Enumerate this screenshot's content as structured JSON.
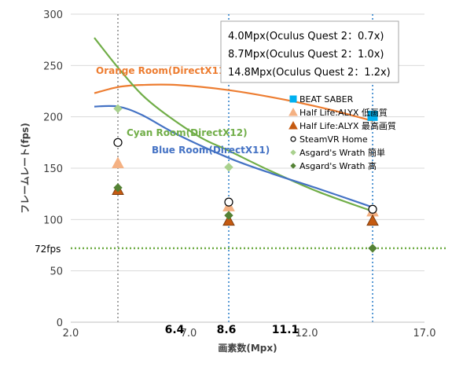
{
  "chart_data": {
    "type": "scatter",
    "xlabel": "画素数(Mpx)",
    "ylabel": "フレームレート(fps)",
    "xlim": [
      2.0,
      17.0
    ],
    "ylim": [
      0,
      300
    ],
    "x_ticks": [
      2.0,
      7.0,
      12.0,
      17.0
    ],
    "x_tick_labels": [
      "2.0",
      "7.0",
      "12.0",
      "17.0"
    ],
    "y_ticks": [
      0,
      50,
      100,
      150,
      200,
      250,
      300
    ],
    "y_tick_labels": [
      "0",
      "50",
      "100",
      "150",
      "200",
      "250",
      "300"
    ],
    "extra_x_labels": [
      {
        "x": 6.4,
        "label": "6.4"
      },
      {
        "x": 8.6,
        "label": "8.6"
      },
      {
        "x": 11.1,
        "label": "11.1"
      }
    ],
    "reference_line": {
      "y": 72,
      "label": "72fps",
      "color": "#70ad47"
    },
    "vertical_lines": [
      {
        "x": 4.0,
        "color": "#a6a6a6"
      },
      {
        "x": 8.7,
        "color": "#5b9bd5"
      },
      {
        "x": 14.8,
        "color": "#5b9bd5"
      }
    ],
    "info_box": [
      "4.0Mpx(Oculus Quest 2：0.7x)",
      "8.7Mpx(Oculus Quest 2：1.0x)",
      "14.8Mpx(Oculus Quest 2：1.2x)"
    ],
    "curves": [
      {
        "label": "Orange Room(DirectX11)",
        "color": "#ed7d31",
        "points": [
          [
            3.0,
            223
          ],
          [
            4.0,
            229
          ],
          [
            5.0,
            231
          ],
          [
            6.5,
            231
          ],
          [
            8.7,
            226
          ],
          [
            11.0,
            217
          ],
          [
            13.0,
            207
          ],
          [
            14.8,
            196
          ]
        ]
      },
      {
        "label": "Cyan Room(DirectX12)",
        "color": "#70ad47",
        "points": [
          [
            3.0,
            277
          ],
          [
            4.0,
            248
          ],
          [
            5.0,
            222
          ],
          [
            6.0,
            203
          ],
          [
            7.5,
            180
          ],
          [
            8.7,
            167
          ],
          [
            10.5,
            147
          ],
          [
            12.5,
            127
          ],
          [
            14.8,
            108
          ]
        ]
      },
      {
        "label": "Blue Room(DirectX11)",
        "color": "#4472c4",
        "points": [
          [
            3.0,
            210
          ],
          [
            4.0,
            210
          ],
          [
            5.0,
            202
          ],
          [
            6.5,
            183
          ],
          [
            8.7,
            160
          ],
          [
            10.5,
            145
          ],
          [
            12.5,
            130
          ],
          [
            14.8,
            112
          ]
        ]
      }
    ],
    "legend": [
      {
        "name": "BEAT SABER",
        "marker": "square",
        "color": "#00b0f0"
      },
      {
        "name": "Half Life:ALYX 低画質",
        "marker": "triangle",
        "color": "#f4b183"
      },
      {
        "name": "Half Life:ALYX 最高画質",
        "marker": "triangle",
        "color": "#c55a11"
      },
      {
        "name": "SteamVR Home",
        "marker": "circle",
        "color": "#000000"
      },
      {
        "name": "Asgard's Wrath 簡単",
        "marker": "diamond",
        "color": "#a9d18e"
      },
      {
        "name": "Asgard's Wrath 高",
        "marker": "diamond",
        "color": "#548235"
      }
    ],
    "series": [
      {
        "name": "BEAT SABER",
        "marker": "square",
        "fill": "#00b0f0",
        "stroke": "#00b0f0",
        "points": [
          [
            14.8,
            201
          ]
        ]
      },
      {
        "name": "Half Life:ALYX 低画質",
        "marker": "triangle",
        "fill": "#f4b183",
        "stroke": "#f4b183",
        "points": [
          [
            4.0,
            155
          ],
          [
            8.7,
            113
          ],
          [
            14.8,
            108
          ]
        ]
      },
      {
        "name": "Half Life:ALYX 最高画質",
        "marker": "triangle",
        "fill": "#c55a11",
        "stroke": "#7f3f0f",
        "points": [
          [
            4.0,
            129
          ],
          [
            8.7,
            99
          ],
          [
            14.8,
            99
          ]
        ]
      },
      {
        "name": "SteamVR Home",
        "marker": "circle",
        "fill": "#ffffff",
        "stroke": "#000000",
        "points": [
          [
            4.0,
            175
          ],
          [
            8.7,
            117
          ],
          [
            14.8,
            110
          ]
        ]
      },
      {
        "name": "Asgard's Wrath 簡単",
        "marker": "diamond",
        "fill": "#a9d18e",
        "stroke": "#a9d18e",
        "points": [
          [
            4.0,
            208
          ],
          [
            8.7,
            151
          ]
        ]
      },
      {
        "name": "Asgard's Wrath 高",
        "marker": "diamond",
        "fill": "#548235",
        "stroke": "#548235",
        "points": [
          [
            4.0,
            131
          ],
          [
            8.7,
            104
          ],
          [
            14.8,
            72
          ]
        ]
      }
    ]
  }
}
